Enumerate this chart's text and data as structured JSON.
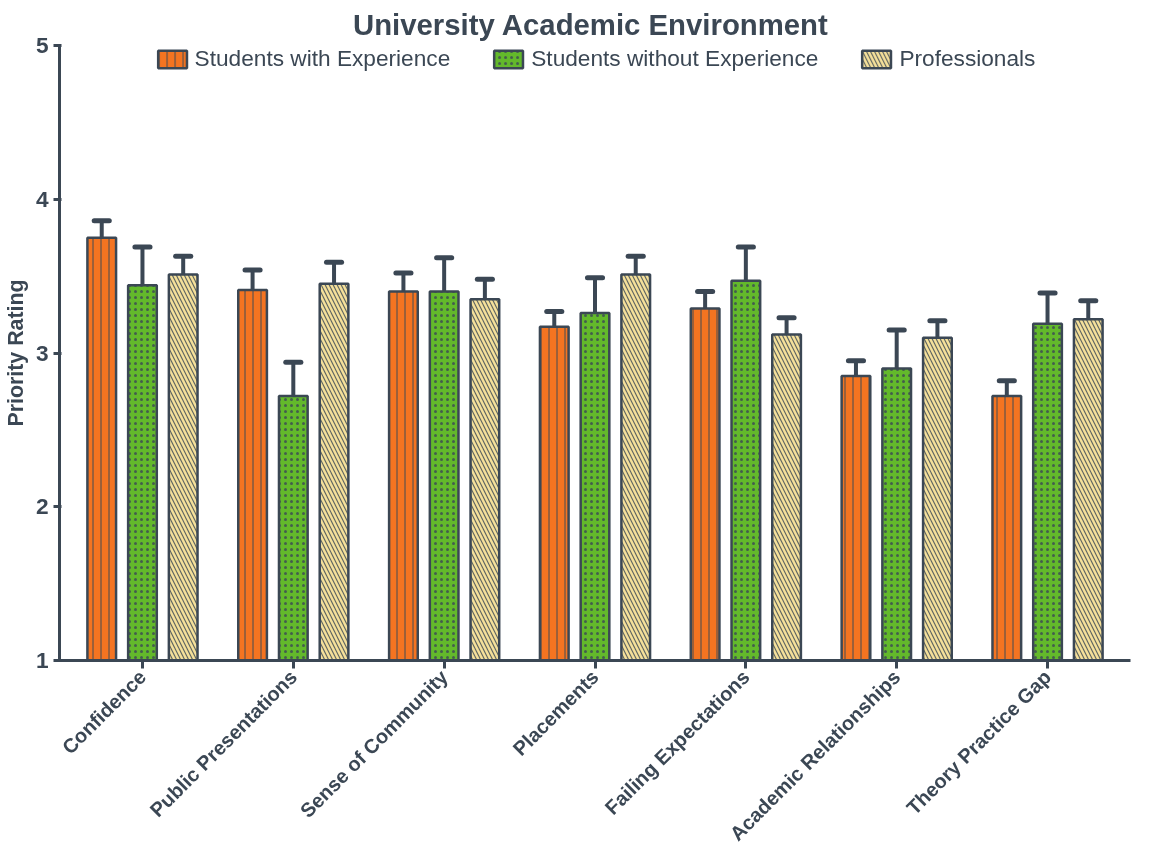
{
  "chart_data": {
    "type": "bar",
    "title": "University Academic  Environment",
    "ylabel": "Priority Rating",
    "categories": [
      "Confidence",
      "Public Presentations",
      "Sense of Community",
      "Placements",
      "Failing Expectations",
      "Academic Relationships",
      "Theory Practice Gap"
    ],
    "series": [
      {
        "name": "Students with Experience",
        "color": "#f47421",
        "values": [
          3.75,
          3.41,
          3.4,
          3.17,
          3.29,
          2.85,
          2.72
        ],
        "errors": [
          [
            3.75,
            3.86
          ],
          [
            3.41,
            3.54
          ],
          [
            3.4,
            3.52
          ],
          [
            3.17,
            3.27
          ],
          [
            3.29,
            3.4
          ],
          [
            2.85,
            2.95
          ],
          [
            2.72,
            2.82
          ]
        ]
      },
      {
        "name": "Students without Experience",
        "color": "#63b92b",
        "values": [
          3.44,
          2.72,
          3.4,
          3.26,
          3.47,
          2.9,
          3.19
        ],
        "errors": [
          [
            3.44,
            3.69
          ],
          [
            2.72,
            2.94
          ],
          [
            3.4,
            3.62
          ],
          [
            3.26,
            3.49
          ],
          [
            3.47,
            3.69
          ],
          [
            2.9,
            3.15
          ],
          [
            3.19,
            3.39
          ]
        ]
      },
      {
        "name": "Professionals",
        "color": "#f5e09a",
        "values": [
          3.51,
          3.45,
          3.35,
          3.51,
          3.12,
          3.1,
          3.22
        ],
        "errors": [
          [
            3.51,
            3.63
          ],
          [
            3.45,
            3.59
          ],
          [
            3.35,
            3.48
          ],
          [
            3.51,
            3.63
          ],
          [
            3.12,
            3.23
          ],
          [
            3.1,
            3.21
          ],
          [
            3.22,
            3.34
          ]
        ]
      }
    ],
    "ylim": [
      1,
      5
    ],
    "yticks": [
      1,
      2,
      3,
      4,
      5
    ],
    "grid": false,
    "legend": "top"
  }
}
